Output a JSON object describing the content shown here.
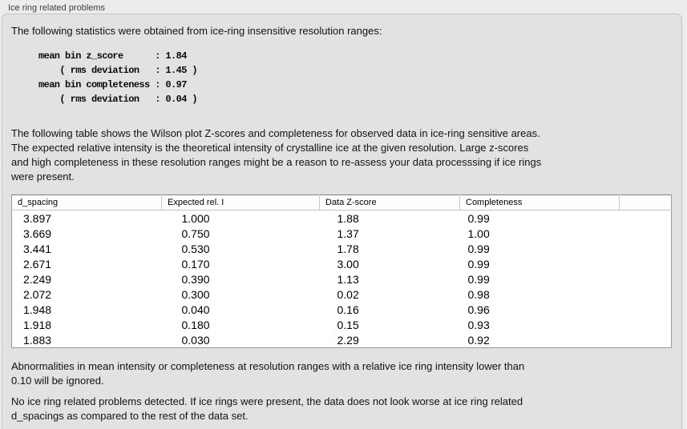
{
  "header": {
    "title": "Ice ring related problems"
  },
  "intro_text": "The following statistics were obtained from ice-ring insensitive resolution ranges:",
  "stats_block": "mean bin z_score      : 1.84\n    ( rms deviation   : 1.45 )\nmean bin completeness : 0.97\n    ( rms deviation   : 0.04 )",
  "table_description": "The following table shows the Wilson plot Z-scores and completeness for observed data in ice-ring sensitive areas.\nThe expected relative intensity is the theoretical intensity of crystalline ice at the given resolution. Large z-scores\nand high completeness in these resolution ranges might be a reason to re-assess your data processsing if ice rings\nwere present.",
  "table": {
    "columns": [
      "d_spacing",
      "Expected rel. I",
      "Data Z-score",
      "Completeness",
      ""
    ],
    "rows": [
      [
        "3.897",
        "1.000",
        "1.88",
        "0.99",
        ""
      ],
      [
        "3.669",
        "0.750",
        "1.37",
        "1.00",
        ""
      ],
      [
        "3.441",
        "0.530",
        "1.78",
        "0.99",
        ""
      ],
      [
        "2.671",
        "0.170",
        "3.00",
        "0.99",
        ""
      ],
      [
        "2.249",
        "0.390",
        "1.13",
        "0.99",
        ""
      ],
      [
        "2.072",
        "0.300",
        "0.02",
        "0.98",
        ""
      ],
      [
        "1.948",
        "0.040",
        "0.16",
        "0.96",
        ""
      ],
      [
        "1.918",
        "0.180",
        "0.15",
        "0.93",
        ""
      ],
      [
        "1.883",
        "0.030",
        "2.29",
        "0.92",
        ""
      ]
    ]
  },
  "note_text": "Abnormalities in mean intensity or completeness at resolution ranges with a relative ice ring intensity lower than\n0.10 will be ignored.",
  "conclusion_text": "No ice ring related problems detected. If ice rings were present, the data does not look worse at ice ring related\nd_spacings as compared to the rest of the data set."
}
